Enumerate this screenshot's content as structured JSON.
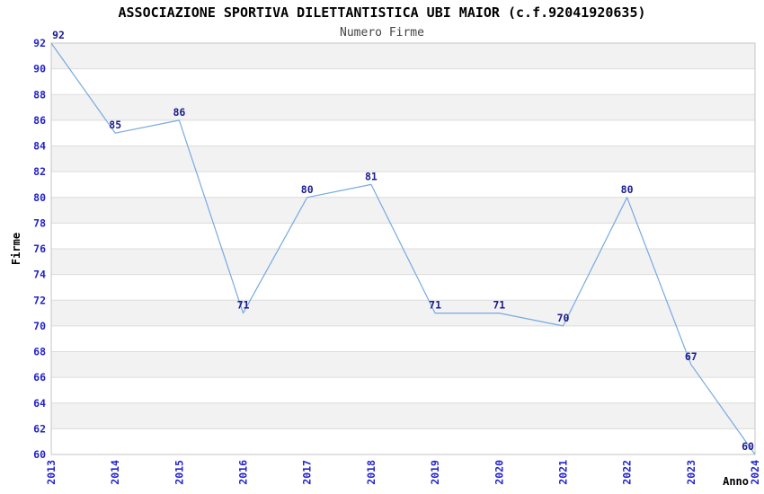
{
  "page": {
    "title": "ASSOCIAZIONE SPORTIVA DILETTANTISTICA UBI MAIOR (c.f.92041920635)",
    "subtitle": "Numero Firme"
  },
  "chart_data": {
    "type": "line",
    "title": "ASSOCIAZIONE SPORTIVA DILETTANTISTICA UBI MAIOR (c.f.92041920635)",
    "subtitle": "Numero Firme",
    "xlabel": "Anno",
    "ylabel": "Firme",
    "categories": [
      "2013",
      "2014",
      "2015",
      "2016",
      "2017",
      "2018",
      "2019",
      "2020",
      "2021",
      "2022",
      "2023",
      "2024"
    ],
    "values": [
      92,
      85,
      86,
      71,
      80,
      81,
      71,
      71,
      70,
      80,
      67,
      60
    ],
    "ylim": [
      60,
      92
    ],
    "ytick_step": 2,
    "yticks": [
      60,
      62,
      64,
      66,
      68,
      70,
      72,
      74,
      76,
      78,
      80,
      82,
      84,
      86,
      88,
      90,
      92
    ],
    "grid": "on",
    "legend_position": "none",
    "series_name": "Numero Firme",
    "colors": {
      "line": "#76aadf",
      "point_label": "#1c1c90",
      "tick_label": "#2323cc",
      "band_fill": "#f2f2f2",
      "gridline": "#dcdcdc",
      "plot_border": "#c6c6c6",
      "title": "#000000",
      "subtitle": "#444444",
      "axis_title": "#000000",
      "background": "#ffffff"
    }
  }
}
